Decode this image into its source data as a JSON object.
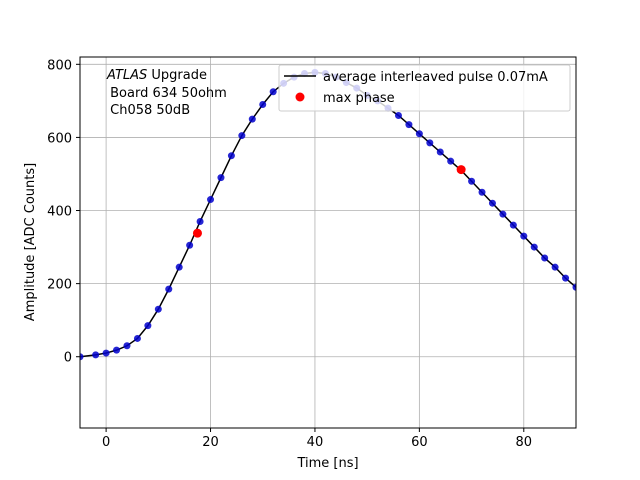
{
  "chart_data": {
    "type": "scatter",
    "xlabel": "Time [ns]",
    "ylabel": "Amplitude [ADC Counts]",
    "xlim": [
      -5,
      90
    ],
    "ylim": [
      -195,
      820
    ],
    "xticks": [
      0,
      20,
      40,
      60,
      80
    ],
    "yticks": [
      0,
      200,
      400,
      600,
      800
    ],
    "grid": true,
    "legend_position": "top-right",
    "annotation": {
      "italic": "ATLAS",
      "line1_rest": " Upgrade",
      "line2": " Board 634 50ohm",
      "line3": " Ch058 50dB"
    },
    "series": [
      {
        "name": "average interleaved pulse 0.07mA",
        "kind": "line",
        "color": "#000000",
        "x": [
          -5,
          -2,
          0,
          2,
          4,
          6,
          8,
          10,
          12,
          14,
          16,
          18,
          20,
          22,
          24,
          26,
          28,
          30,
          32,
          34,
          36,
          38,
          40,
          42,
          44,
          46,
          48,
          50,
          52,
          54,
          56,
          58,
          60,
          62,
          64,
          66,
          68,
          70,
          72,
          74,
          76,
          78,
          80,
          82,
          84,
          86,
          88,
          90
        ],
        "y": [
          0,
          5,
          10,
          18,
          30,
          50,
          85,
          130,
          185,
          245,
          305,
          370,
          430,
          490,
          550,
          605,
          650,
          690,
          725,
          748,
          765,
          775,
          778,
          775,
          765,
          750,
          735,
          715,
          700,
          680,
          660,
          635,
          610,
          585,
          560,
          535,
          510,
          480,
          450,
          420,
          390,
          360,
          330,
          300,
          270,
          245,
          215,
          190
        ]
      },
      {
        "name": "",
        "kind": "markers",
        "color": "#0000cc",
        "x": [
          -5,
          -2,
          0,
          2,
          4,
          6,
          8,
          10,
          12,
          14,
          16,
          18,
          20,
          22,
          24,
          26,
          28,
          30,
          32,
          34,
          36,
          38,
          40,
          42,
          44,
          46,
          48,
          50,
          52,
          54,
          56,
          58,
          60,
          62,
          64,
          66,
          68,
          70,
          72,
          74,
          76,
          78,
          80,
          82,
          84,
          86,
          88,
          90
        ],
        "y": [
          0,
          5,
          10,
          18,
          30,
          50,
          85,
          130,
          185,
          245,
          305,
          370,
          430,
          490,
          550,
          605,
          650,
          690,
          725,
          748,
          765,
          775,
          778,
          775,
          765,
          750,
          735,
          715,
          700,
          680,
          660,
          635,
          610,
          585,
          560,
          535,
          510,
          480,
          450,
          420,
          390,
          360,
          330,
          300,
          270,
          245,
          215,
          190
        ]
      },
      {
        "name": "max phase",
        "kind": "markers",
        "color": "#ff0000",
        "x": [
          17.5,
          68
        ],
        "y": [
          338,
          512
        ]
      }
    ]
  }
}
